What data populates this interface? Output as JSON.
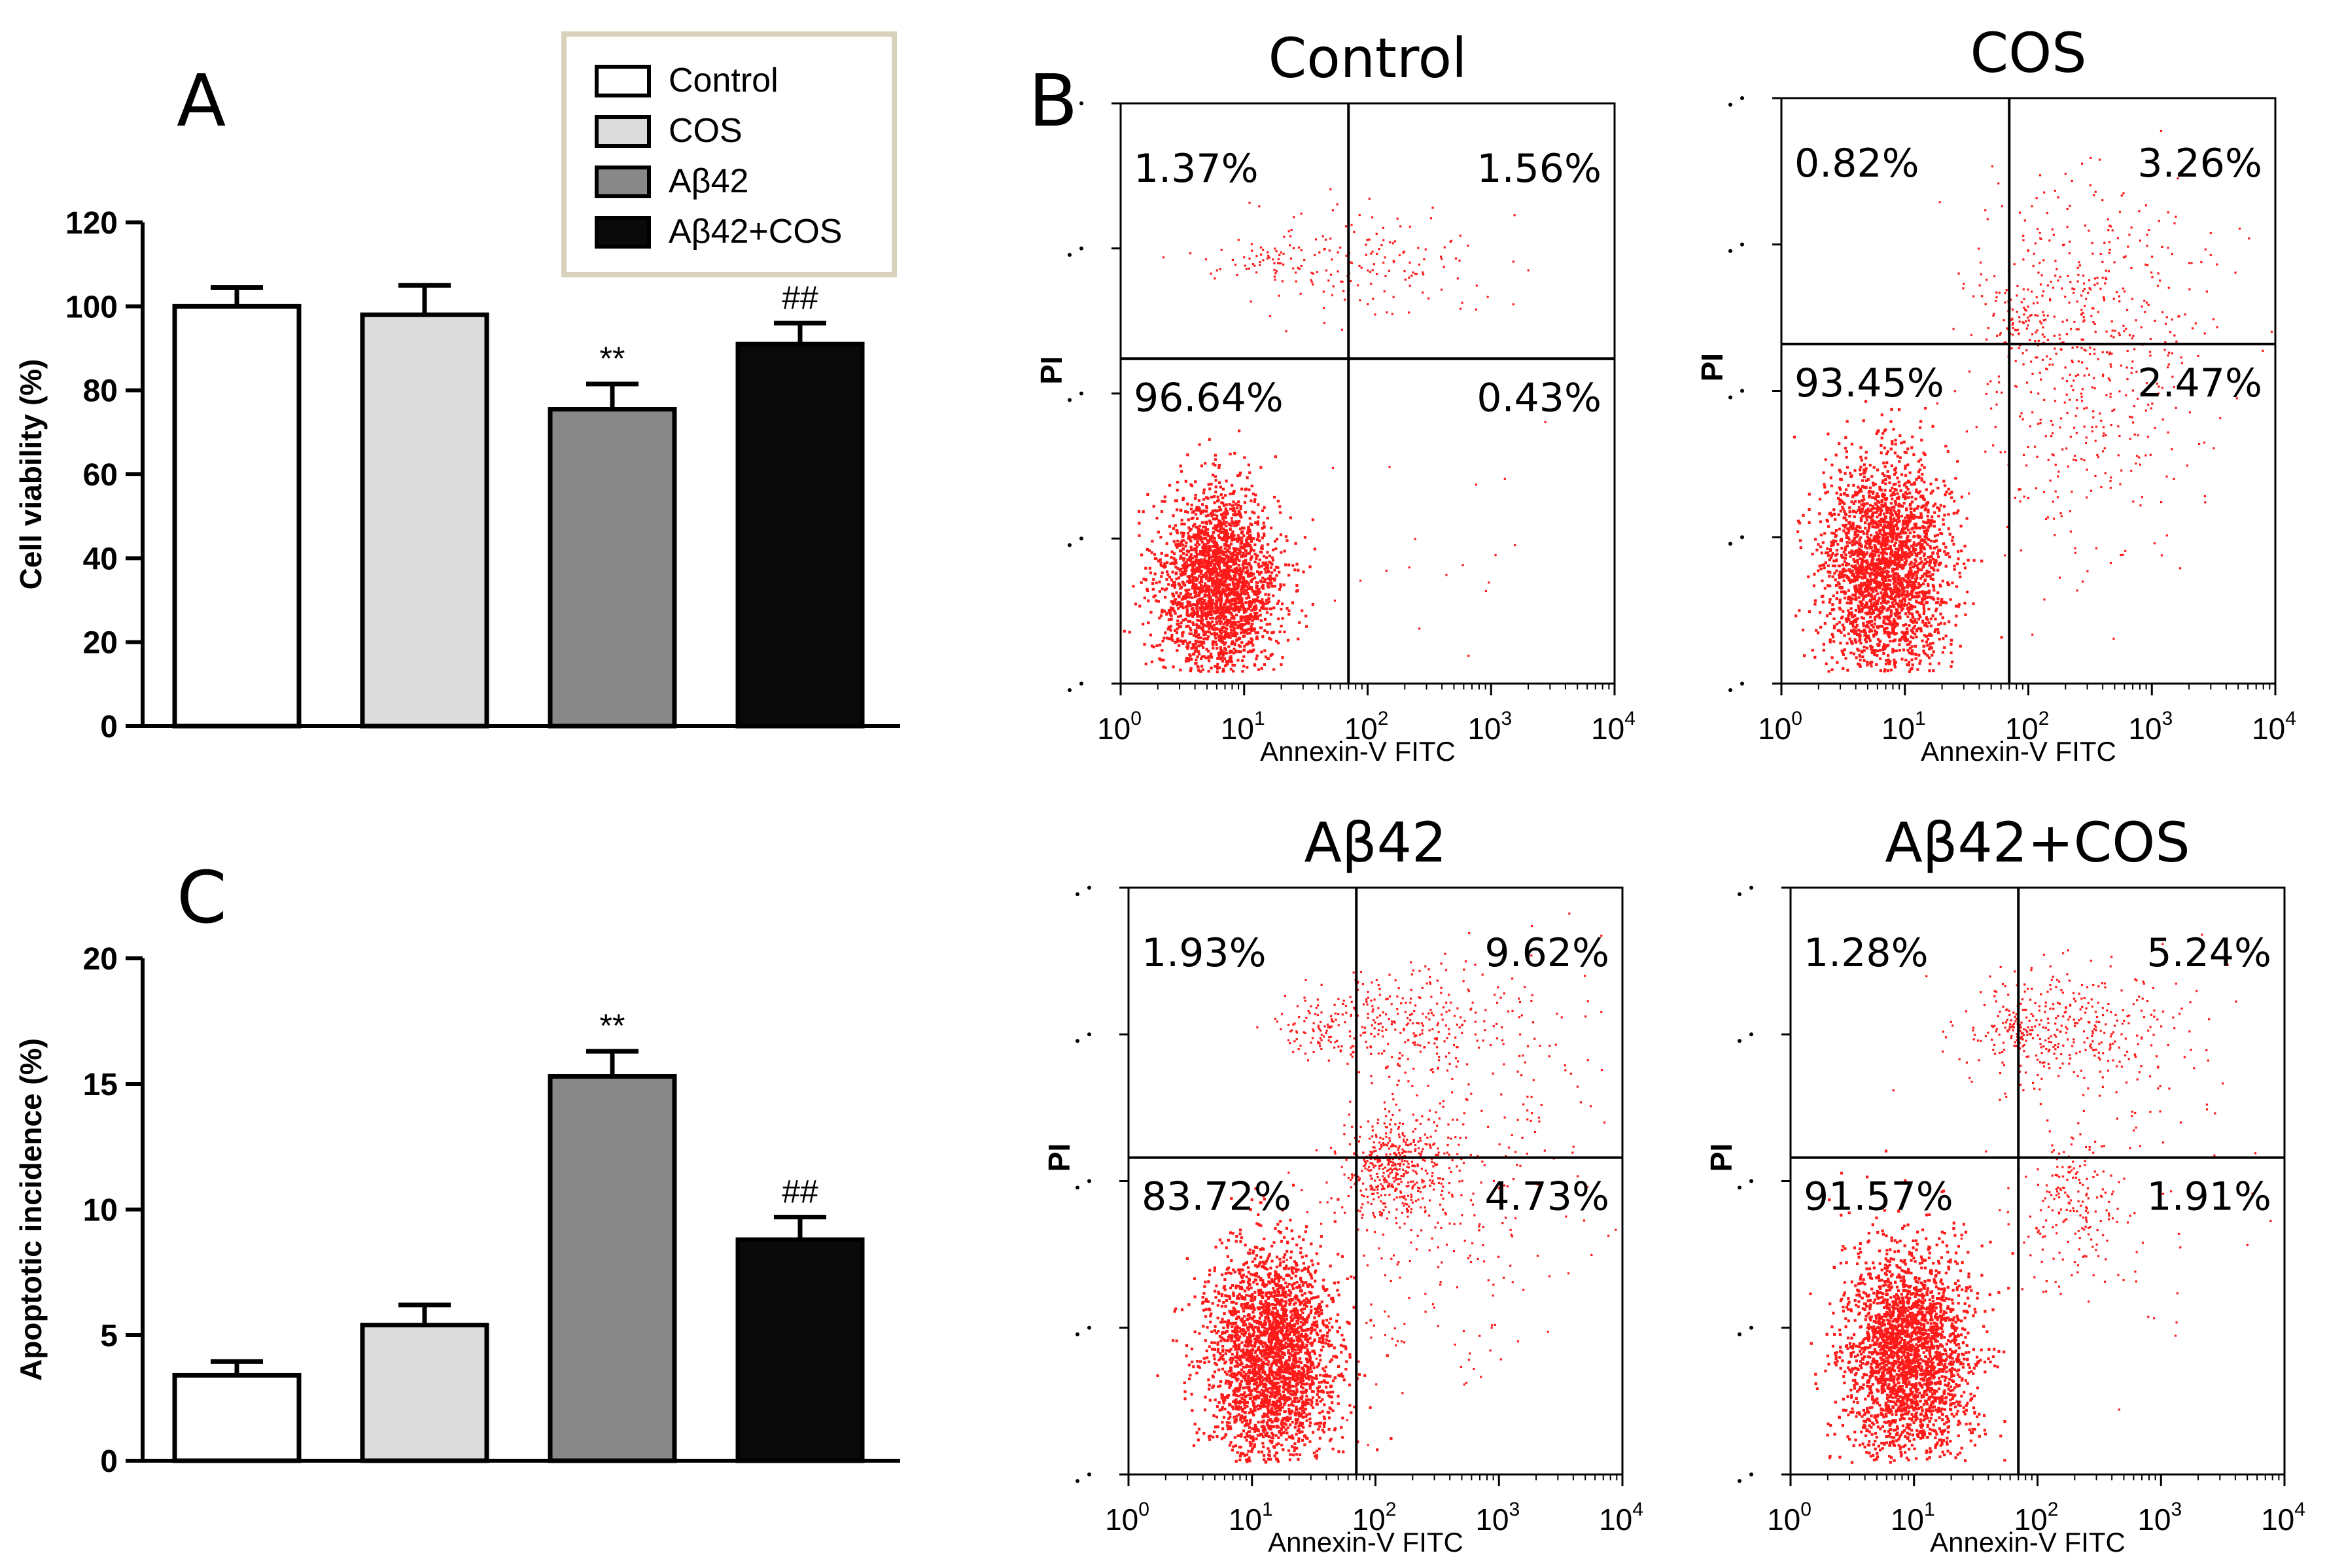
{
  "chart_data": [
    {
      "panel": "A",
      "type": "bar",
      "categories": [
        "Control",
        "COS",
        "Aβ42",
        "Aβ42+COS"
      ],
      "values": [
        100,
        98,
        75.5,
        91
      ],
      "errors": [
        4.5,
        7,
        6,
        5
      ],
      "significance": [
        "",
        "",
        "**",
        "##"
      ],
      "colors": [
        "#ffffff",
        "#dcdcdc",
        "#888888",
        "#0a0a0a"
      ],
      "ylabel": "Cell viability (%)",
      "ylim": [
        0,
        120
      ],
      "yticks": [
        "0",
        "20",
        "40",
        "60",
        "80",
        "100",
        "120"
      ],
      "legend": {
        "position": "top-right",
        "entries": [
          {
            "label": "Control",
            "color": "#ffffff"
          },
          {
            "label": "COS",
            "color": "#dcdcdc"
          },
          {
            "label": "Aβ42",
            "color": "#888888"
          },
          {
            "label": "Aβ42+COS",
            "color": "#0a0a0a"
          }
        ]
      }
    },
    {
      "panel": "C",
      "type": "bar",
      "categories": [
        "Control",
        "COS",
        "Aβ42",
        "Aβ42+COS"
      ],
      "values": [
        3.4,
        5.4,
        15.3,
        8.8
      ],
      "errors": [
        0.55,
        0.8,
        1.0,
        0.9
      ],
      "significance": [
        "",
        "",
        "**",
        "##"
      ],
      "colors": [
        "#ffffff",
        "#dcdcdc",
        "#888888",
        "#0a0a0a"
      ],
      "ylabel": "Apoptotic incidence (%)",
      "ylim": [
        0,
        20
      ],
      "yticks": [
        "0",
        "5",
        "10",
        "15",
        "20"
      ]
    },
    {
      "panel": "B",
      "type": "scatter",
      "title": "Control",
      "xlabel": "Annexin-V FITC",
      "ylabel": "PI",
      "xticks": [
        "0",
        "1",
        "2",
        "3",
        "4"
      ],
      "xlog": true,
      "xlim": [
        1,
        10000
      ],
      "gate": {
        "x": 70,
        "y": 0.56
      },
      "quadrants": {
        "ul": "1.37%",
        "ur": "1.56%",
        "ll": "96.64%",
        "lr": "0.43%"
      },
      "populations": [
        {
          "cx": 0.8,
          "cy": 0.17,
          "sx": 0.24,
          "sy": 0.08,
          "n": 2400,
          "dense": true
        },
        {
          "cx": 2.0,
          "cy": 0.73,
          "sx": 0.5,
          "sy": 0.05,
          "n": 160
        },
        {
          "cx": 1.2,
          "cy": 0.73,
          "sx": 0.2,
          "sy": 0.02,
          "n": 50
        },
        {
          "cx": 2.5,
          "cy": 0.25,
          "sx": 0.5,
          "sy": 0.12,
          "n": 20
        }
      ]
    },
    {
      "panel": "B",
      "type": "scatter",
      "title": "COS",
      "xlabel": "Annexin-V FITC",
      "ylabel": "PI",
      "xticks": [
        "0",
        "1",
        "2",
        "3",
        "4"
      ],
      "xlog": true,
      "xlim": [
        1,
        10000
      ],
      "gate": {
        "x": 70,
        "y": 0.58
      },
      "quadrants": {
        "ul": "0.82%",
        "ur": "3.26%",
        "ll": "93.45%",
        "lr": "2.47%"
      },
      "populations": [
        {
          "cx": 0.85,
          "cy": 0.2,
          "sx": 0.25,
          "sy": 0.09,
          "n": 2500,
          "dense": true
        },
        {
          "cx": 2.5,
          "cy": 0.65,
          "sx": 0.5,
          "sy": 0.12,
          "n": 330
        },
        {
          "cx": 2.4,
          "cy": 0.45,
          "sx": 0.45,
          "sy": 0.14,
          "n": 260
        },
        {
          "cx": 1.95,
          "cy": 0.62,
          "sx": 0.15,
          "sy": 0.03,
          "n": 60
        }
      ]
    },
    {
      "panel": "B",
      "type": "scatter",
      "title": "Aβ42",
      "xlabel": "Annexin-V FITC",
      "ylabel": "PI",
      "xticks": [
        "0",
        "1",
        "2",
        "3",
        "4"
      ],
      "xlog": true,
      "xlim": [
        1,
        10000
      ],
      "gate": {
        "x": 70,
        "y": 0.54
      },
      "quadrants": {
        "ul": "1.93%",
        "ur": "9.62%",
        "ll": "83.72%",
        "lr": "4.73%"
      },
      "populations": [
        {
          "cx": 1.15,
          "cy": 0.2,
          "sx": 0.26,
          "sy": 0.09,
          "n": 2700,
          "dense": true
        },
        {
          "cx": 2.15,
          "cy": 0.52,
          "sx": 0.22,
          "sy": 0.05,
          "n": 480
        },
        {
          "cx": 2.2,
          "cy": 0.77,
          "sx": 0.4,
          "sy": 0.05,
          "n": 280
        },
        {
          "cx": 1.5,
          "cy": 0.76,
          "sx": 0.15,
          "sy": 0.025,
          "n": 70
        },
        {
          "cx": 3.0,
          "cy": 0.65,
          "sx": 0.55,
          "sy": 0.15,
          "n": 160
        },
        {
          "cx": 2.4,
          "cy": 0.35,
          "sx": 0.45,
          "sy": 0.12,
          "n": 120
        }
      ]
    },
    {
      "panel": "B",
      "type": "scatter",
      "title": "Aβ42+COS",
      "xlabel": "Annexin-V FITC",
      "ylabel": "PI",
      "xticks": [
        "0",
        "1",
        "2",
        "3",
        "4"
      ],
      "xlog": true,
      "xlim": [
        1,
        10000
      ],
      "gate": {
        "x": 70,
        "y": 0.54
      },
      "quadrants": {
        "ul": "1.28%",
        "ur": "5.24%",
        "ll": "91.57%",
        "lr": "1.91%"
      },
      "populations": [
        {
          "cx": 0.95,
          "cy": 0.2,
          "sx": 0.26,
          "sy": 0.09,
          "n": 2600,
          "dense": true
        },
        {
          "cx": 2.25,
          "cy": 0.76,
          "sx": 0.42,
          "sy": 0.05,
          "n": 330
        },
        {
          "cx": 1.8,
          "cy": 0.76,
          "sx": 0.13,
          "sy": 0.02,
          "n": 70
        },
        {
          "cx": 2.3,
          "cy": 0.45,
          "sx": 0.2,
          "sy": 0.07,
          "n": 190
        },
        {
          "cx": 2.8,
          "cy": 0.58,
          "sx": 0.5,
          "sy": 0.15,
          "n": 80
        }
      ]
    }
  ],
  "panel_labels": {
    "a": "A",
    "b": "B",
    "c": "C"
  }
}
